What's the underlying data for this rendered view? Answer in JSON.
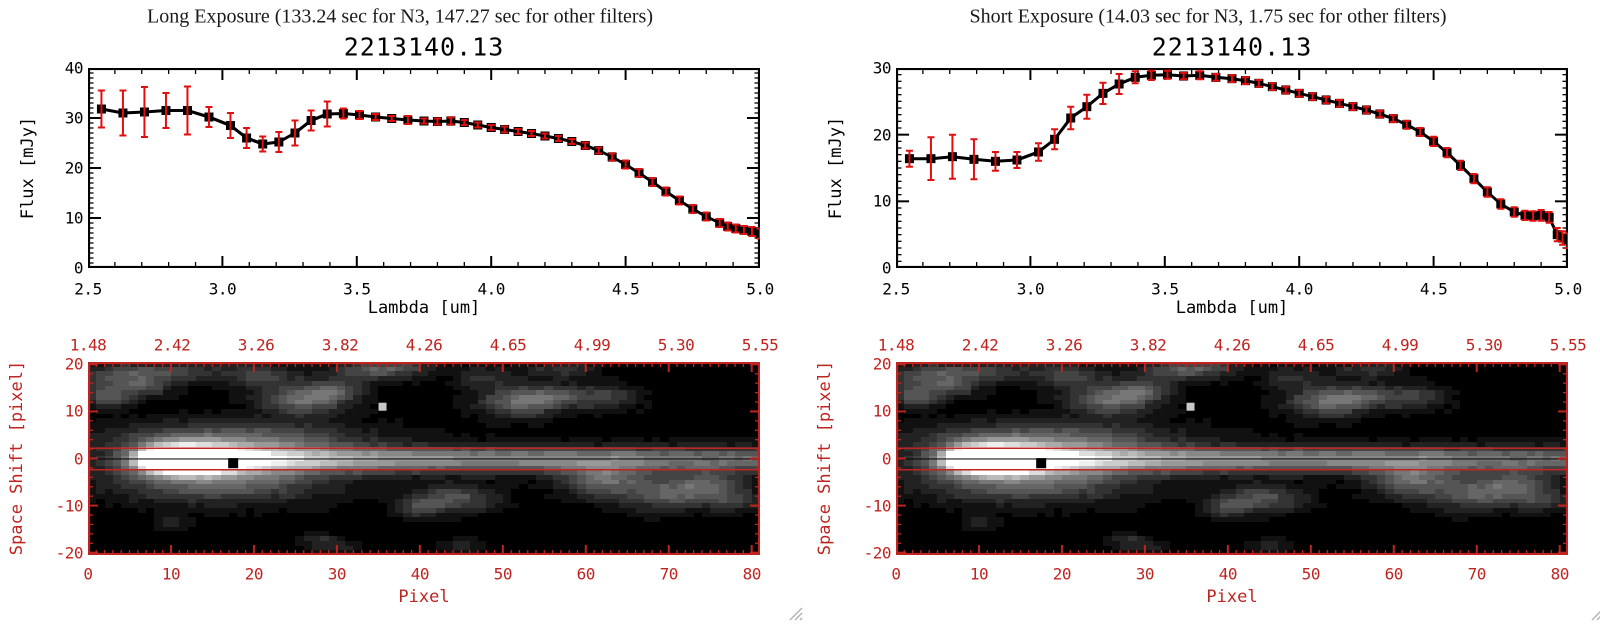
{
  "colors": {
    "axis_red": "#bf2420",
    "error_red": "#e30f0f",
    "plot_black": "#000000",
    "title_color": "#1a1a1a",
    "grip_gray": "#b4b4b4",
    "marker_white": "#c9c9c9",
    "background": "#ffffff"
  },
  "icons": {
    "resize_grip": "diagonal-lines"
  },
  "panels": [
    {
      "exposure_title": "Long Exposure (133.24 sec for N3, 147.27 sec for other filters)",
      "plot_title": "2213140.13",
      "spectrum_index": 0,
      "spectrum_axes": {
        "ylabel": "Flux [mJy]",
        "xlabel": "Lambda [um]",
        "xtick_labels": [
          "2.5",
          "3.0",
          "3.5",
          "4.0",
          "4.5",
          "5.0"
        ],
        "ytick_labels": [
          "0",
          "10",
          "20",
          "30",
          "40"
        ]
      },
      "image_axes": {
        "ylabel": "Space Shift [pixel]",
        "xlabel": "Pixel",
        "top_labels": [
          "1.48",
          "2.42",
          "3.26",
          "3.82",
          "4.26",
          "4.65",
          "4.99",
          "5.30",
          "5.55"
        ],
        "xtick_labels": [
          "0",
          "10",
          "20",
          "30",
          "40",
          "50",
          "60",
          "70",
          "80"
        ],
        "ytick_labels": [
          "20",
          "10",
          "0",
          "-10",
          "-20"
        ]
      }
    },
    {
      "exposure_title": "Short Exposure (14.03 sec for N3, 1.75 sec for other filters)",
      "plot_title": "2213140.13",
      "spectrum_index": 1,
      "spectrum_axes": {
        "ylabel": "Flux [mJy]",
        "xlabel": "Lambda [um]",
        "xtick_labels": [
          "2.5",
          "3.0",
          "3.5",
          "4.0",
          "4.5",
          "5.0"
        ],
        "ytick_labels": [
          "0",
          "10",
          "20",
          "30"
        ]
      },
      "image_axes": {
        "ylabel": "Space Shift [pixel]",
        "xlabel": "Pixel",
        "top_labels": [
          "1.48",
          "2.42",
          "3.26",
          "3.82",
          "4.26",
          "4.65",
          "4.99",
          "5.30",
          "5.55"
        ],
        "xtick_labels": [
          "0",
          "10",
          "20",
          "30",
          "40",
          "50",
          "60",
          "70",
          "80"
        ],
        "ytick_labels": [
          "20",
          "10",
          "0",
          "-10",
          "-20"
        ]
      }
    }
  ],
  "chart_data": [
    {
      "type": "line",
      "title": "2213140.13",
      "subtitle": "Long Exposure (133.24 sec for N3, 147.27 sec for other filters)",
      "xlabel": "Lambda [um]",
      "ylabel": "Flux [mJy]",
      "xlim": [
        2.5,
        5.0
      ],
      "ylim": [
        0,
        40
      ],
      "xticks": [
        2.5,
        3.0,
        3.5,
        4.0,
        4.5,
        5.0
      ],
      "yticks": [
        0,
        10,
        20,
        30,
        40
      ],
      "marker": "square",
      "line_color": "#000000",
      "error_color": "#e30f0f",
      "x": [
        2.55,
        2.63,
        2.71,
        2.79,
        2.87,
        2.95,
        3.03,
        3.09,
        3.15,
        3.21,
        3.27,
        3.33,
        3.39,
        3.45,
        3.51,
        3.57,
        3.63,
        3.69,
        3.75,
        3.8,
        3.85,
        3.9,
        3.95,
        4.0,
        4.05,
        4.1,
        4.15,
        4.2,
        4.25,
        4.3,
        4.35,
        4.4,
        4.45,
        4.5,
        4.55,
        4.6,
        4.65,
        4.7,
        4.75,
        4.8,
        4.85,
        4.88,
        4.91,
        4.94,
        4.97,
        5.0
      ],
      "y": [
        31.8,
        31.0,
        31.2,
        31.5,
        31.5,
        30.2,
        28.5,
        26.0,
        24.8,
        25.2,
        27.0,
        29.5,
        30.8,
        30.9,
        30.6,
        30.2,
        29.9,
        29.6,
        29.4,
        29.3,
        29.4,
        29.1,
        28.6,
        28.1,
        27.7,
        27.3,
        26.9,
        26.4,
        25.9,
        25.3,
        24.5,
        23.5,
        22.2,
        20.7,
        19.0,
        17.2,
        15.3,
        13.5,
        11.8,
        10.3,
        9.0,
        8.3,
        7.9,
        7.6,
        7.3,
        6.9
      ],
      "yerr": [
        3.7,
        4.5,
        5.0,
        3.5,
        4.8,
        2.0,
        2.5,
        2.0,
        1.5,
        2.0,
        2.5,
        2.0,
        2.5,
        1.0,
        0.8,
        0.6,
        0.5,
        0.8,
        0.5,
        0.6,
        0.7,
        0.5,
        0.5,
        0.5,
        0.6,
        0.5,
        0.5,
        0.5,
        0.5,
        0.5,
        0.6,
        0.6,
        0.7,
        0.8,
        0.8,
        0.8,
        0.8,
        0.8,
        0.8,
        0.8,
        0.8,
        0.8,
        0.8,
        0.8,
        0.9,
        1.0
      ]
    },
    {
      "type": "line",
      "title": "2213140.13",
      "subtitle": "Short Exposure (14.03 sec for N3, 1.75 sec for other filters)",
      "xlabel": "Lambda [um]",
      "ylabel": "Flux [mJy]",
      "xlim": [
        2.5,
        5.0
      ],
      "ylim": [
        0,
        30
      ],
      "xticks": [
        2.5,
        3.0,
        3.5,
        4.0,
        4.5,
        5.0
      ],
      "yticks": [
        0,
        10,
        20,
        30
      ],
      "marker": "square",
      "line_color": "#000000",
      "error_color": "#e30f0f",
      "x": [
        2.55,
        2.63,
        2.71,
        2.79,
        2.87,
        2.95,
        3.03,
        3.09,
        3.15,
        3.21,
        3.27,
        3.33,
        3.39,
        3.45,
        3.51,
        3.57,
        3.63,
        3.69,
        3.75,
        3.8,
        3.85,
        3.9,
        3.95,
        4.0,
        4.05,
        4.1,
        4.15,
        4.2,
        4.25,
        4.3,
        4.35,
        4.4,
        4.45,
        4.5,
        4.55,
        4.6,
        4.65,
        4.7,
        4.75,
        4.8,
        4.84,
        4.87,
        4.9,
        4.93,
        4.96,
        4.98,
        5.0
      ],
      "y": [
        16.4,
        16.4,
        16.7,
        16.3,
        16.0,
        16.2,
        17.4,
        19.3,
        22.5,
        24.2,
        26.2,
        27.6,
        28.6,
        28.9,
        29.0,
        28.8,
        28.9,
        28.6,
        28.4,
        28.1,
        27.7,
        27.2,
        26.7,
        26.2,
        25.7,
        25.2,
        24.7,
        24.2,
        23.7,
        23.1,
        22.4,
        21.5,
        20.4,
        19.0,
        17.3,
        15.4,
        13.4,
        11.4,
        9.6,
        8.4,
        7.9,
        7.8,
        7.9,
        7.6,
        5.0,
        4.5,
        4.1
      ],
      "yerr": [
        1.2,
        3.2,
        3.3,
        3.0,
        1.4,
        1.2,
        1.3,
        1.5,
        1.7,
        1.8,
        1.6,
        1.5,
        0.9,
        0.7,
        0.6,
        0.5,
        0.6,
        0.5,
        0.5,
        0.5,
        0.5,
        0.5,
        0.5,
        0.5,
        0.5,
        0.5,
        0.5,
        0.5,
        0.5,
        0.5,
        0.5,
        0.6,
        0.6,
        0.7,
        0.7,
        0.7,
        0.7,
        0.7,
        0.7,
        0.7,
        0.7,
        0.7,
        0.8,
        0.8,
        1.0,
        1.0,
        1.1
      ]
    },
    {
      "type": "heatmap",
      "title": "2D dispersed spectrum image",
      "xlabel": "Pixel",
      "ylabel": "Space Shift [pixel]",
      "xlim": [
        0,
        81
      ],
      "ylim": [
        -20.5,
        20.5
      ],
      "xticks": [
        0,
        10,
        20,
        30,
        40,
        50,
        60,
        70,
        80
      ],
      "yticks": [
        20,
        10,
        0,
        -10,
        -20
      ],
      "top_axis_wavelength_um": [
        1.48,
        2.42,
        3.26,
        3.82,
        4.26,
        4.65,
        4.99,
        5.3,
        5.55
      ],
      "colormap": "grayscale",
      "description": "Bright point source near pixel 11 at space shift 0 with a horizontal dispersion streak to pixel 81; red extraction-aperture lines at space shift +2.2 and -2.4; black square marker at (17.5,-1); white square marker at (35.5,11); faint gray background blobs.",
      "model": {
        "source": {
          "x": 11.5,
          "y": -0.2,
          "sx": 4.0,
          "sy": 2.0,
          "amp": 1.35
        },
        "halo": {
          "x": 16,
          "y": -0.2,
          "sx": 9.0,
          "sy": 3.6,
          "amp": 0.32
        },
        "streak": {
          "y": -0.2,
          "sy": 1.9,
          "amp": 0.68,
          "x_start": 5,
          "x_full": 9,
          "end_fraction": 0.62
        },
        "blobs": [
          [
            4,
            17,
            4,
            2,
            0.28
          ],
          [
            11,
            18.5,
            5,
            1.5,
            0.22
          ],
          [
            2.5,
            13,
            2,
            1.5,
            0.3
          ],
          [
            7,
            15,
            2,
            1.2,
            0.18
          ],
          [
            21,
            17.5,
            3,
            2,
            0.22
          ],
          [
            34,
            18.5,
            4,
            1.5,
            0.25
          ],
          [
            37,
            19.5,
            3,
            1.2,
            0.2
          ],
          [
            48,
            17.5,
            2.5,
            1.5,
            0.18
          ],
          [
            57,
            19,
            3,
            1.3,
            0.2
          ],
          [
            26,
            12.5,
            3.5,
            2.2,
            0.42
          ],
          [
            30,
            14.5,
            2.5,
            1.5,
            0.25
          ],
          [
            52,
            12,
            3.5,
            2.2,
            0.4
          ],
          [
            56,
            13.5,
            2.5,
            1.5,
            0.22
          ],
          [
            62,
            13,
            3,
            1.8,
            0.25
          ],
          [
            18,
            4.5,
            11,
            2.5,
            0.28
          ],
          [
            16,
            -5.5,
            9,
            3,
            0.3
          ],
          [
            44,
            -8.5,
            3.5,
            2,
            0.32
          ],
          [
            40,
            -10.5,
            2,
            1.5,
            0.2
          ],
          [
            62,
            -4.5,
            3.5,
            2.5,
            0.38
          ],
          [
            70,
            -7.5,
            4,
            2.5,
            0.32
          ],
          [
            75,
            -5.5,
            3,
            2,
            0.28
          ],
          [
            78,
            -9,
            2.5,
            1.5,
            0.2
          ],
          [
            10,
            -13.5,
            1.5,
            1,
            0.15
          ],
          [
            28,
            -17,
            1.5,
            1,
            0.15
          ],
          [
            45,
            -18.5,
            1.5,
            1,
            0.15
          ],
          [
            30,
            -19,
            2,
            1,
            0.15
          ]
        ],
        "aperture_lines_y": [
          2.2,
          -2.4
        ],
        "center_line_y": -0.1,
        "black_square_marker": {
          "x": 17.5,
          "y": -1
        },
        "white_square_marker": {
          "x": 35.5,
          "y": 11
        }
      }
    }
  ]
}
